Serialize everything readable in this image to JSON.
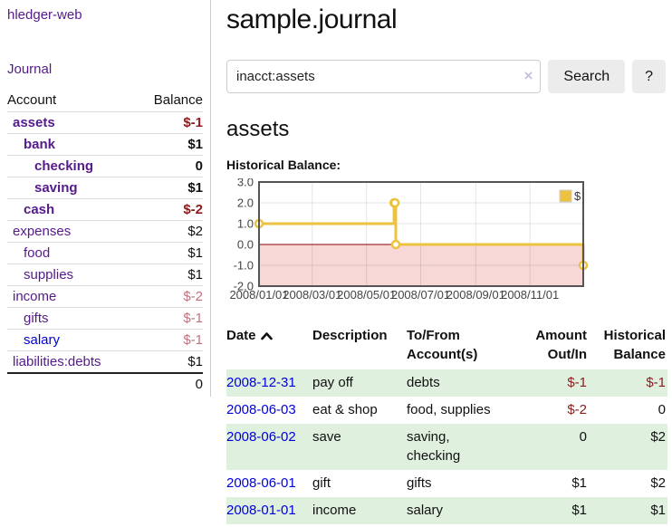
{
  "colors": {
    "link_purple": "#551a8b",
    "link_blue": "#0000dd",
    "neg_strong": "#8b1b1e",
    "neg_muted": "#c1707f",
    "stripe_green": "#dff0de",
    "series_yellow": "#edc240",
    "negative_region_pink": "#f8d7d7",
    "zero_line_red": "#8b0000",
    "chart_border_gray": "#545454"
  },
  "sidebar": {
    "app_title": "hledger-web",
    "journal_link": "Journal",
    "account_header": "Account",
    "balance_header": "Balance",
    "accounts": [
      {
        "name": "assets",
        "level": 0,
        "bold": true,
        "link": "purple",
        "balance": "$-1",
        "balance_style": "neg-bold"
      },
      {
        "name": "bank",
        "level": 1,
        "bold": true,
        "link": "purple",
        "balance": "$1",
        "balance_style": "bold"
      },
      {
        "name": "checking",
        "level": 2,
        "bold": true,
        "link": "purple",
        "balance": "0",
        "balance_style": "bold"
      },
      {
        "name": "saving",
        "level": 2,
        "bold": true,
        "link": "purple",
        "balance": "$1",
        "balance_style": "bold"
      },
      {
        "name": "cash",
        "level": 1,
        "bold": true,
        "link": "purple",
        "balance": "$-2",
        "balance_style": "neg-bold"
      },
      {
        "name": "expenses",
        "level": 0,
        "bold": false,
        "link": "purple",
        "balance": "$2",
        "balance_style": "plain"
      },
      {
        "name": "food",
        "level": 1,
        "bold": false,
        "link": "purple",
        "balance": "$1",
        "balance_style": "plain"
      },
      {
        "name": "supplies",
        "level": 1,
        "bold": false,
        "link": "purple",
        "balance": "$1",
        "balance_style": "plain"
      },
      {
        "name": "income",
        "level": 0,
        "bold": false,
        "link": "purple",
        "balance": "$-2",
        "balance_style": "neg-muted"
      },
      {
        "name": "gifts",
        "level": 1,
        "bold": false,
        "link": "purple",
        "balance": "$-1",
        "balance_style": "neg-muted"
      },
      {
        "name": "salary",
        "level": 1,
        "bold": false,
        "link": "blue",
        "balance": "$-1",
        "balance_style": "neg-muted"
      },
      {
        "name": "liabilities:debts",
        "level": 0,
        "bold": false,
        "link": "purple",
        "balance": "$1",
        "balance_style": "plain"
      }
    ],
    "total_balance": "0"
  },
  "main": {
    "title": "sample.journal",
    "search": {
      "value": "inacct:assets",
      "clear_icon": "×",
      "search_button": "Search",
      "help_button": "?"
    },
    "account_heading": "assets",
    "chart_label": "Historical Balance:"
  },
  "chart_data": {
    "type": "line",
    "step": true,
    "title": "Historical Balance",
    "series": [
      {
        "name": "$",
        "color": "#edc240",
        "points": [
          [
            "2008-01-01",
            1
          ],
          [
            "2008-06-01",
            2
          ],
          [
            "2008-06-02",
            2
          ],
          [
            "2008-06-03",
            0
          ],
          [
            "2008-12-31",
            -1
          ]
        ]
      }
    ],
    "xlim": [
      "2008-01-01",
      "2008-12-31"
    ],
    "ylim": [
      -2,
      3
    ],
    "x_ticks": [
      {
        "date": "2008-01-01",
        "label": "2008/01/01"
      },
      {
        "date": "2008-03-01",
        "label": "2008/03/01"
      },
      {
        "date": "2008-05-01",
        "label": "2008/05/01"
      },
      {
        "date": "2008-07-01",
        "label": "2008/07/01"
      },
      {
        "date": "2008-09-01",
        "label": "2008/09/01"
      },
      {
        "date": "2008-11-01",
        "label": "2008/11/01"
      }
    ],
    "y_ticks": [
      "3.0",
      "2.0",
      "1.0",
      "0.0",
      "-1.0",
      "-2.0"
    ],
    "legend_position": "top-right",
    "grid": true,
    "negative_region_shaded": true
  },
  "register": {
    "headers": {
      "date": "Date",
      "description": "Description",
      "accounts": "To/From\nAccount(s)",
      "amount": "Amount\nOut/In",
      "balance": "Historical\nBalance"
    },
    "sort_icon": "chevron-up",
    "rows": [
      {
        "date": "2008-12-31",
        "description": "pay off",
        "accounts": "debts",
        "amount": "$-1",
        "amount_neg": true,
        "balance": "$-1",
        "balance_neg": true
      },
      {
        "date": "2008-06-03",
        "description": "eat & shop",
        "accounts": "food, supplies",
        "amount": "$-2",
        "amount_neg": true,
        "balance": "0",
        "balance_neg": false
      },
      {
        "date": "2008-06-02",
        "description": "save",
        "accounts": "saving,\nchecking",
        "amount": "0",
        "amount_neg": false,
        "balance": "$2",
        "balance_neg": false
      },
      {
        "date": "2008-06-01",
        "description": "gift",
        "accounts": "gifts",
        "amount": "$1",
        "amount_neg": false,
        "balance": "$2",
        "balance_neg": false
      },
      {
        "date": "2008-01-01",
        "description": "income",
        "accounts": "salary",
        "amount": "$1",
        "amount_neg": false,
        "balance": "$1",
        "balance_neg": false
      }
    ]
  }
}
